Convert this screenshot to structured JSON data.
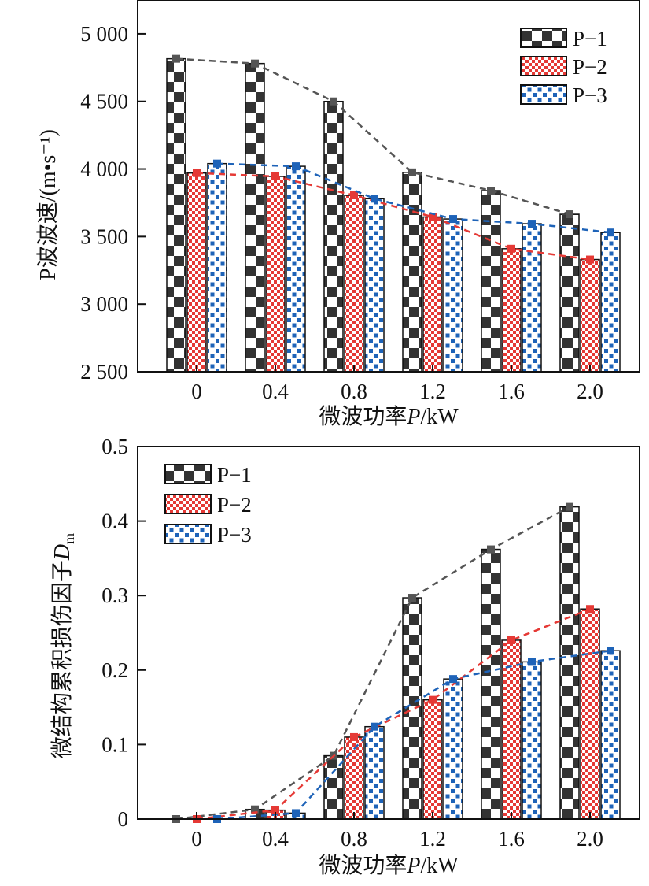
{
  "colors": {
    "P-1": "#111111",
    "P-2": "#e53935",
    "P-3": "#1e63b8",
    "P-1_trend": "#555555",
    "P-2_trend": "#e53935",
    "P-3_trend": "#1e63b8",
    "axis": "#111111"
  },
  "chart_data": [
    {
      "type": "bar",
      "xlabel": "微波功率P/kW",
      "ylabel": "P波波速/(m•s⁻¹)",
      "categories": [
        "0",
        "0.4",
        "0.8",
        "1.2",
        "1.6",
        "2.0"
      ],
      "ylim": [
        2500,
        5250
      ],
      "yticks": [
        2500,
        3000,
        3500,
        4000,
        4500,
        5000
      ],
      "ytick_labels": [
        "2 500",
        "3 000",
        "3 500",
        "4 000",
        "4 500",
        "5 000"
      ],
      "legend_position": "top-right",
      "dashed_trend_lines": true,
      "series": [
        {
          "name": "P−1",
          "key": "P-1",
          "pattern": "checker",
          "values": [
            4815,
            4780,
            4500,
            3975,
            3840,
            3665
          ]
        },
        {
          "name": "P−2",
          "key": "P-2",
          "pattern": "fine-check",
          "values": [
            3970,
            3945,
            3805,
            3645,
            3410,
            3330
          ]
        },
        {
          "name": "P−3",
          "key": "P-3",
          "pattern": "dots",
          "values": [
            4040,
            4020,
            3780,
            3630,
            3595,
            3530
          ]
        }
      ]
    },
    {
      "type": "bar",
      "xlabel": "微波功率P/kW",
      "ylabel": "微结构累积损伤因子",
      "ylabel_symbol": "D",
      "ylabel_subscript": "m",
      "categories": [
        "0",
        "0.4",
        "0.8",
        "1.2",
        "1.6",
        "2.0"
      ],
      "ylim": [
        0,
        0.5
      ],
      "yticks": [
        0,
        0.1,
        0.2,
        0.3,
        0.4,
        0.5
      ],
      "ytick_labels": [
        "0",
        "0.1",
        "0.2",
        "0.3",
        "0.4",
        "0.5"
      ],
      "legend_position": "top-left",
      "dashed_trend_lines": true,
      "series": [
        {
          "name": "P−1",
          "key": "P-1",
          "pattern": "checker",
          "values": [
            0,
            0.013,
            0.085,
            0.297,
            0.362,
            0.419
          ]
        },
        {
          "name": "P−2",
          "key": "P-2",
          "pattern": "fine-check",
          "values": [
            0,
            0.012,
            0.11,
            0.16,
            0.24,
            0.282
          ]
        },
        {
          "name": "P−3",
          "key": "P-3",
          "pattern": "dots",
          "values": [
            0,
            0.008,
            0.124,
            0.188,
            0.211,
            0.226
          ]
        }
      ]
    }
  ]
}
